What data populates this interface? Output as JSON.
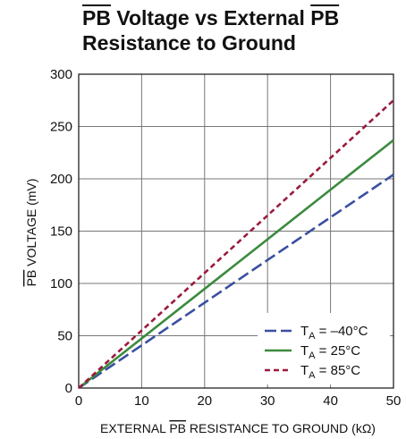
{
  "chart_data": {
    "type": "line",
    "title_line1_a": "PB",
    "title_line1_b": " Voltage vs External ",
    "title_line1_c": "PB",
    "title_line2": "Resistance to Ground",
    "xlabel_a": "EXTERNAL ",
    "xlabel_b": "PB",
    "xlabel_c": " RESISTANCE TO GROUND (kΩ)",
    "ylabel_a": "PB",
    "ylabel_b": " VOLTAGE (mV)",
    "xlim": [
      0,
      50
    ],
    "ylim": [
      0,
      300
    ],
    "xticks": [
      "0",
      "10",
      "20",
      "30",
      "40",
      "50"
    ],
    "yticks": [
      "0",
      "50",
      "100",
      "150",
      "200",
      "250",
      "300"
    ],
    "grid": true,
    "legend_position": "bottom-right",
    "series": [
      {
        "name_main": "T",
        "name_sub": "A",
        "name_rest": " = –40°C",
        "color": "#3a4fa0",
        "style": "long-dash",
        "x": [
          0,
          50
        ],
        "y": [
          0,
          204
        ]
      },
      {
        "name_main": "T",
        "name_sub": "A",
        "name_rest": " = 25°C",
        "color": "#3b8a3e",
        "style": "solid",
        "x": [
          0,
          50
        ],
        "y": [
          0,
          237
        ]
      },
      {
        "name_main": "T",
        "name_sub": "A",
        "name_rest": " = 85°C",
        "color": "#9a1b3c",
        "style": "short-dash",
        "x": [
          0,
          50
        ],
        "y": [
          0,
          275
        ]
      }
    ]
  }
}
